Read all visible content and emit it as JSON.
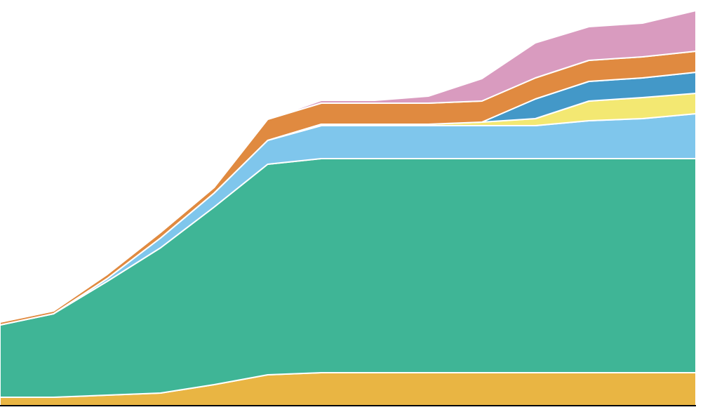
{
  "chart_data": {
    "type": "area",
    "stacked": true,
    "title": "",
    "xlabel": "",
    "ylabel": "",
    "x": [
      0,
      1,
      2,
      3,
      4,
      5,
      6,
      7,
      8,
      9,
      10,
      11,
      12,
      13
    ],
    "ylim": [
      0,
      568
    ],
    "grid": false,
    "legend": "none",
    "series": [
      {
        "color": "#E9B543",
        "values": [
          12,
          12,
          15,
          18,
          30,
          44,
          47,
          47,
          47,
          47,
          47,
          47,
          47,
          47
        ]
      },
      {
        "color": "#3FB596",
        "values": [
          103,
          119,
          162,
          207,
          253,
          300,
          305,
          305,
          305,
          305,
          305,
          305,
          305,
          305
        ]
      },
      {
        "color": "#7FC6EC",
        "values": [
          0,
          0,
          4,
          14,
          20,
          34,
          47,
          47,
          47,
          47,
          47,
          54,
          57,
          64
        ]
      },
      {
        "color": "#F3E872",
        "values": [
          0,
          0,
          0,
          0,
          0,
          0,
          2,
          2,
          2,
          5,
          10,
          28,
          30,
          29
        ]
      },
      {
        "color": "#4398C8",
        "values": [
          0,
          0,
          0,
          0,
          0,
          0,
          0,
          0,
          0,
          0,
          28,
          28,
          28,
          30
        ]
      },
      {
        "color": "#E08A40",
        "values": [
          4,
          4,
          6,
          8,
          8,
          30,
          30,
          30,
          30,
          30,
          30,
          30,
          30,
          30
        ]
      },
      {
        "color": "#D99BBF",
        "values": [
          0,
          0,
          0,
          0,
          0,
          0,
          4,
          4,
          10,
          32,
          50,
          48,
          48,
          58
        ]
      }
    ]
  }
}
